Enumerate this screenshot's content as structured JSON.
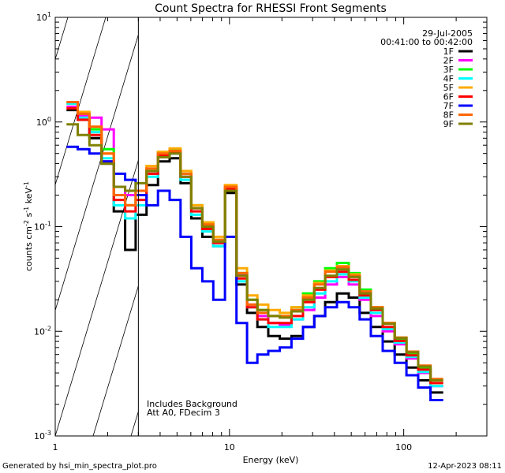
{
  "chart_data": {
    "type": "line",
    "title": "Count Spectra for RHESSI Front Segments",
    "xlabel": "Energy (keV)",
    "ylabel_parts": {
      "base": "counts cm",
      "exp1": "-2",
      "mid": " s",
      "exp2": "-1",
      "unit": " keV",
      "exp3": "-1"
    },
    "xscale": "log",
    "yscale": "log",
    "xlim": [
      1,
      300
    ],
    "ylim": [
      0.001,
      10
    ],
    "x_ticks": [
      {
        "value": 1,
        "label": "1"
      },
      {
        "value": 10,
        "label": "10"
      },
      {
        "value": 100,
        "label": "100"
      }
    ],
    "y_ticks": [
      {
        "value": 0.001,
        "base": "10",
        "exp": "-3"
      },
      {
        "value": 0.01,
        "base": "10",
        "exp": "-2"
      },
      {
        "value": 0.1,
        "base": "10",
        "exp": "-1"
      },
      {
        "value": 1,
        "base": "10",
        "exp": "0"
      },
      {
        "value": 10,
        "base": "10",
        "exp": "1"
      }
    ],
    "hatched_region": {
      "x_from": 1,
      "x_to": 3
    },
    "date": "29-Jul-2005",
    "time_range": "00:41:00 to 00:42:00",
    "annotations": [
      "Includes Background",
      "Att A0, FDecim 3"
    ],
    "legend_position": "top-right",
    "series": [
      {
        "name": "1F",
        "color": "#000000",
        "values": [
          1.3,
          1.05,
          0.7,
          0.4,
          0.14,
          0.06,
          0.13,
          0.25,
          0.42,
          0.45,
          0.26,
          0.12,
          0.08,
          0.065,
          0.21,
          0.028,
          0.015,
          0.011,
          0.009,
          0.0085,
          0.009,
          0.011,
          0.014,
          0.019,
          0.023,
          0.021,
          0.015,
          0.011,
          0.008,
          0.006,
          0.0045,
          0.0034,
          0.0026
        ]
      },
      {
        "name": "2F",
        "color": "#ff00ff",
        "values": [
          1.4,
          1.15,
          1.1,
          0.85,
          0.24,
          0.2,
          0.22,
          0.32,
          0.48,
          0.5,
          0.3,
          0.15,
          0.1,
          0.07,
          0.23,
          0.035,
          0.018,
          0.014,
          0.012,
          0.0115,
          0.013,
          0.016,
          0.021,
          0.028,
          0.033,
          0.028,
          0.02,
          0.014,
          0.01,
          0.0075,
          0.0055,
          0.004,
          0.003
        ]
      },
      {
        "name": "3F",
        "color": "#00ff00",
        "values": [
          1.5,
          1.2,
          0.85,
          0.55,
          0.2,
          0.16,
          0.2,
          0.34,
          0.52,
          0.55,
          0.32,
          0.16,
          0.11,
          0.075,
          0.24,
          0.036,
          0.02,
          0.016,
          0.014,
          0.014,
          0.017,
          0.023,
          0.03,
          0.04,
          0.045,
          0.036,
          0.025,
          0.017,
          0.012,
          0.0085,
          0.006,
          0.0044,
          0.0032
        ]
      },
      {
        "name": "4F",
        "color": "#00ffff",
        "values": [
          1.5,
          1.1,
          0.8,
          0.45,
          0.16,
          0.12,
          0.16,
          0.3,
          0.47,
          0.5,
          0.28,
          0.13,
          0.09,
          0.065,
          0.22,
          0.03,
          0.017,
          0.013,
          0.011,
          0.011,
          0.013,
          0.017,
          0.023,
          0.03,
          0.035,
          0.03,
          0.021,
          0.015,
          0.0105,
          0.0078,
          0.0057,
          0.0041,
          0.003
        ]
      },
      {
        "name": "5F",
        "color": "#ffaa00",
        "values": [
          1.55,
          1.25,
          0.9,
          0.5,
          0.2,
          0.16,
          0.22,
          0.38,
          0.52,
          0.56,
          0.34,
          0.16,
          0.11,
          0.08,
          0.25,
          0.04,
          0.022,
          0.018,
          0.016,
          0.015,
          0.017,
          0.022,
          0.029,
          0.038,
          0.042,
          0.035,
          0.024,
          0.017,
          0.012,
          0.0087,
          0.0063,
          0.0046,
          0.0034
        ]
      },
      {
        "name": "6F",
        "color": "#ff0000",
        "values": [
          1.35,
          1.05,
          0.75,
          0.42,
          0.18,
          0.14,
          0.18,
          0.32,
          0.48,
          0.52,
          0.3,
          0.14,
          0.095,
          0.07,
          0.23,
          0.032,
          0.017,
          0.013,
          0.012,
          0.012,
          0.014,
          0.019,
          0.025,
          0.033,
          0.037,
          0.031,
          0.022,
          0.016,
          0.011,
          0.0081,
          0.0059,
          0.0043,
          0.0032
        ]
      },
      {
        "name": "7F",
        "color": "#0000ff",
        "values": [
          0.58,
          0.55,
          0.5,
          0.42,
          0.32,
          0.28,
          0.2,
          0.16,
          0.22,
          0.18,
          0.08,
          0.04,
          0.03,
          0.02,
          0.08,
          0.012,
          0.005,
          0.006,
          0.0065,
          0.007,
          0.0085,
          0.011,
          0.014,
          0.017,
          0.019,
          0.017,
          0.013,
          0.009,
          0.0065,
          0.005,
          0.0038,
          0.0029,
          0.0022
        ]
      },
      {
        "name": "8F",
        "color": "#ff6600",
        "values": [
          1.55,
          1.2,
          0.9,
          0.5,
          0.2,
          0.16,
          0.22,
          0.36,
          0.5,
          0.53,
          0.32,
          0.15,
          0.105,
          0.075,
          0.24,
          0.036,
          0.018,
          0.015,
          0.014,
          0.014,
          0.016,
          0.021,
          0.028,
          0.037,
          0.041,
          0.034,
          0.024,
          0.017,
          0.012,
          0.0087,
          0.0064,
          0.0047,
          0.0035
        ]
      },
      {
        "name": "9F",
        "color": "#808000",
        "values": [
          0.95,
          0.75,
          0.6,
          0.4,
          0.24,
          0.22,
          0.26,
          0.34,
          0.46,
          0.5,
          0.3,
          0.15,
          0.1,
          0.072,
          0.22,
          0.034,
          0.02,
          0.016,
          0.014,
          0.0135,
          0.0155,
          0.02,
          0.026,
          0.034,
          0.039,
          0.033,
          0.023,
          0.0165,
          0.0118,
          0.0086,
          0.0063,
          0.0046,
          0.0034
        ]
      }
    ],
    "energies": [
      1.25,
      1.45,
      1.7,
      2.0,
      2.35,
      2.7,
      3.1,
      3.6,
      4.2,
      4.9,
      5.6,
      6.5,
      7.5,
      8.7,
      10.2,
      11.8,
      13.5,
      15.5,
      18,
      21,
      24.5,
      28.5,
      33,
      38,
      45,
      52,
      60,
      70,
      82,
      96,
      112,
      131,
      155
    ]
  },
  "footer": {
    "generated_by": "Generated by hsi_min_spectra_plot.pro",
    "timestamp": "12-Apr-2023 08:11"
  }
}
